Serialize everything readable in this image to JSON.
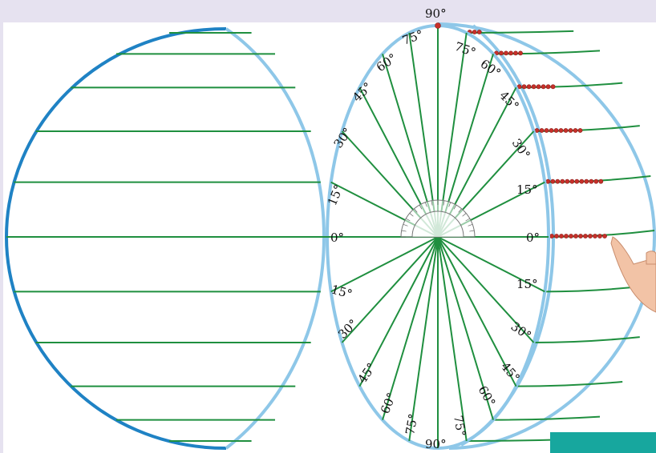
{
  "diagram": {
    "angle_labels": {
      "top": "90°",
      "bottom": "90°",
      "north_left": [
        "75°",
        "60°",
        "45°",
        "30°",
        "15°"
      ],
      "north_right": [
        "75°",
        "60°",
        "45°",
        "30°",
        "15°"
      ],
      "equator_left": "0°",
      "equator_right": "0°",
      "south_left": [
        "15°",
        "30°",
        "45°",
        "60°",
        "75°"
      ],
      "south_right": [
        "15°",
        "30°",
        "45°",
        "60°",
        "75°"
      ]
    },
    "latitude_steps_deg": [
      0,
      15,
      30,
      45,
      60,
      75,
      90
    ],
    "colors": {
      "background": "#e6e2f0",
      "page": "#ffffff",
      "latitude_lines": "#1f8f3f",
      "rim_dark": "#1f82c4",
      "rim_light": "#8ec7e8",
      "beads": "#c7302a",
      "teal_block": "#17a79e"
    }
  }
}
